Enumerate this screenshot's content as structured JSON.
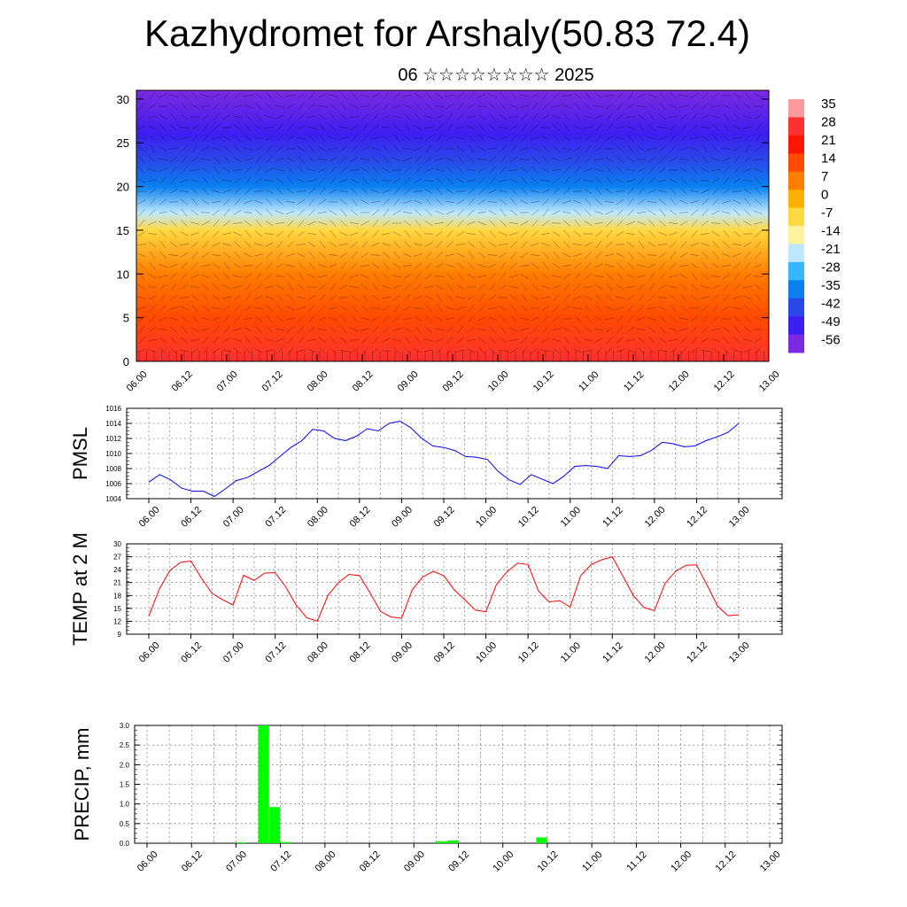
{
  "title": "Kazhydromet for Arshaly(50.83 72.4)",
  "subtitle": "06 ☆☆☆☆☆☆☆☆ 2025",
  "time_ticks": [
    "06.00",
    "06.12",
    "07.00",
    "07.12",
    "08.00",
    "08.12",
    "09.00",
    "09.12",
    "10.00",
    "10.12",
    "11.00",
    "11.12",
    "12.00",
    "12.12",
    "13.00"
  ],
  "colors": {
    "pmsl_line": "#0000ff",
    "temp_line": "#ff0000",
    "precip_bar": "#00ff00"
  },
  "chart_data": [
    {
      "type": "heatmap",
      "title": "",
      "xlabel": "",
      "ylabel": "",
      "y_ticks": [
        "0",
        "5",
        "10",
        "15",
        "20",
        "25",
        "30"
      ],
      "ylim": [
        0,
        31
      ],
      "colorbar_labels": [
        "35",
        "28",
        "21",
        "14",
        "7",
        "0",
        "-7",
        "-14",
        "-21",
        "-28",
        "-35",
        "-42",
        "-49",
        "-56"
      ],
      "colorbar_colors": [
        "#ff9a9a",
        "#ff3030",
        "#ff1500",
        "#ff4a00",
        "#ff7d00",
        "#ffb000",
        "#ffd940",
        "#fff2a0",
        "#bfe8ff",
        "#35b8ff",
        "#0a80f0",
        "#2a48e8",
        "#3d1ef0",
        "#7a2ae0"
      ],
      "layers": [
        {
          "height": 0,
          "value": 26
        },
        {
          "height": 5,
          "value": 16
        },
        {
          "height": 10,
          "value": 8
        },
        {
          "height": 15,
          "value": -8
        },
        {
          "height": 17,
          "value": -20
        },
        {
          "height": 20,
          "value": -32
        },
        {
          "height": 23,
          "value": -44
        },
        {
          "height": 26,
          "value": -52
        },
        {
          "height": 31,
          "value": -56
        }
      ]
    },
    {
      "type": "line",
      "ylabel": "PMSL",
      "y_ticks": [
        "1004",
        "1006",
        "1008",
        "1010",
        "1012",
        "1014",
        "1016"
      ],
      "ylim": [
        1004,
        1016
      ],
      "x_step_hours": 3,
      "series": [
        {
          "values": [
            1006.2,
            1007.2,
            1006.5,
            1005.4,
            1005.0,
            1005.0,
            1004.3,
            1005.3,
            1006.4,
            1006.8,
            1007.6,
            1008.4,
            1009.6,
            1010.8,
            1011.7,
            1013.2,
            1013.0,
            1012.0,
            1011.7,
            1012.3,
            1013.3,
            1013.0,
            1014.0,
            1014.3,
            1013.4,
            1012.0,
            1011.0,
            1010.8,
            1010.4,
            1009.6,
            1009.5,
            1009.2,
            1007.6,
            1006.5,
            1005.9,
            1007.2,
            1006.6,
            1006.0,
            1007.0,
            1008.3,
            1008.4,
            1008.3,
            1008.0,
            1009.7,
            1009.6,
            1009.7,
            1010.4,
            1011.5,
            1011.3,
            1010.9,
            1011.0,
            1011.7,
            1012.2,
            1012.8,
            1014.0
          ]
        }
      ]
    },
    {
      "type": "line",
      "ylabel": "TEMP at 2 M",
      "y_ticks": [
        "9",
        "12",
        "15",
        "18",
        "21",
        "24",
        "27",
        "30"
      ],
      "ylim": [
        9,
        30
      ],
      "x_step_hours": 3,
      "series": [
        {
          "values": [
            13.2,
            19.5,
            23.8,
            25.7,
            26.0,
            22.0,
            18.5,
            17.0,
            15.8,
            22.7,
            21.5,
            23.2,
            23.3,
            20.0,
            15.7,
            12.8,
            12.0,
            18.0,
            21.0,
            22.9,
            22.6,
            18.6,
            14.3,
            13.0,
            12.7,
            19.3,
            22.3,
            23.6,
            22.6,
            19.3,
            17.0,
            14.6,
            14.2,
            20.6,
            23.5,
            25.5,
            25.2,
            19.0,
            16.5,
            16.8,
            15.3,
            22.6,
            25.2,
            26.3,
            27.0,
            22.5,
            18.0,
            15.2,
            14.5,
            20.8,
            23.6,
            25.0,
            25.1,
            20.4,
            15.5,
            13.3,
            13.5
          ]
        }
      ]
    },
    {
      "type": "bar",
      "ylabel": "PRECIP, mm",
      "y_ticks": [
        "0.0",
        "0.5",
        "1.0",
        "1.5",
        "2.0",
        "2.5",
        "3.0"
      ],
      "ylim": [
        0,
        3.0
      ],
      "x_step_hours": 3,
      "values": [
        0,
        0,
        0,
        0,
        0,
        0,
        0,
        0,
        0.02,
        0,
        3.0,
        0.92,
        0.03,
        0,
        0,
        0,
        0,
        0,
        0,
        0,
        0,
        0,
        0,
        0,
        0,
        0,
        0.05,
        0.07,
        0,
        0,
        0,
        0,
        0,
        0,
        0,
        0.15,
        0,
        0,
        0,
        0,
        0,
        0,
        0,
        0,
        0,
        0,
        0,
        0,
        0,
        0,
        0,
        0,
        0,
        0,
        0,
        0
      ]
    }
  ]
}
